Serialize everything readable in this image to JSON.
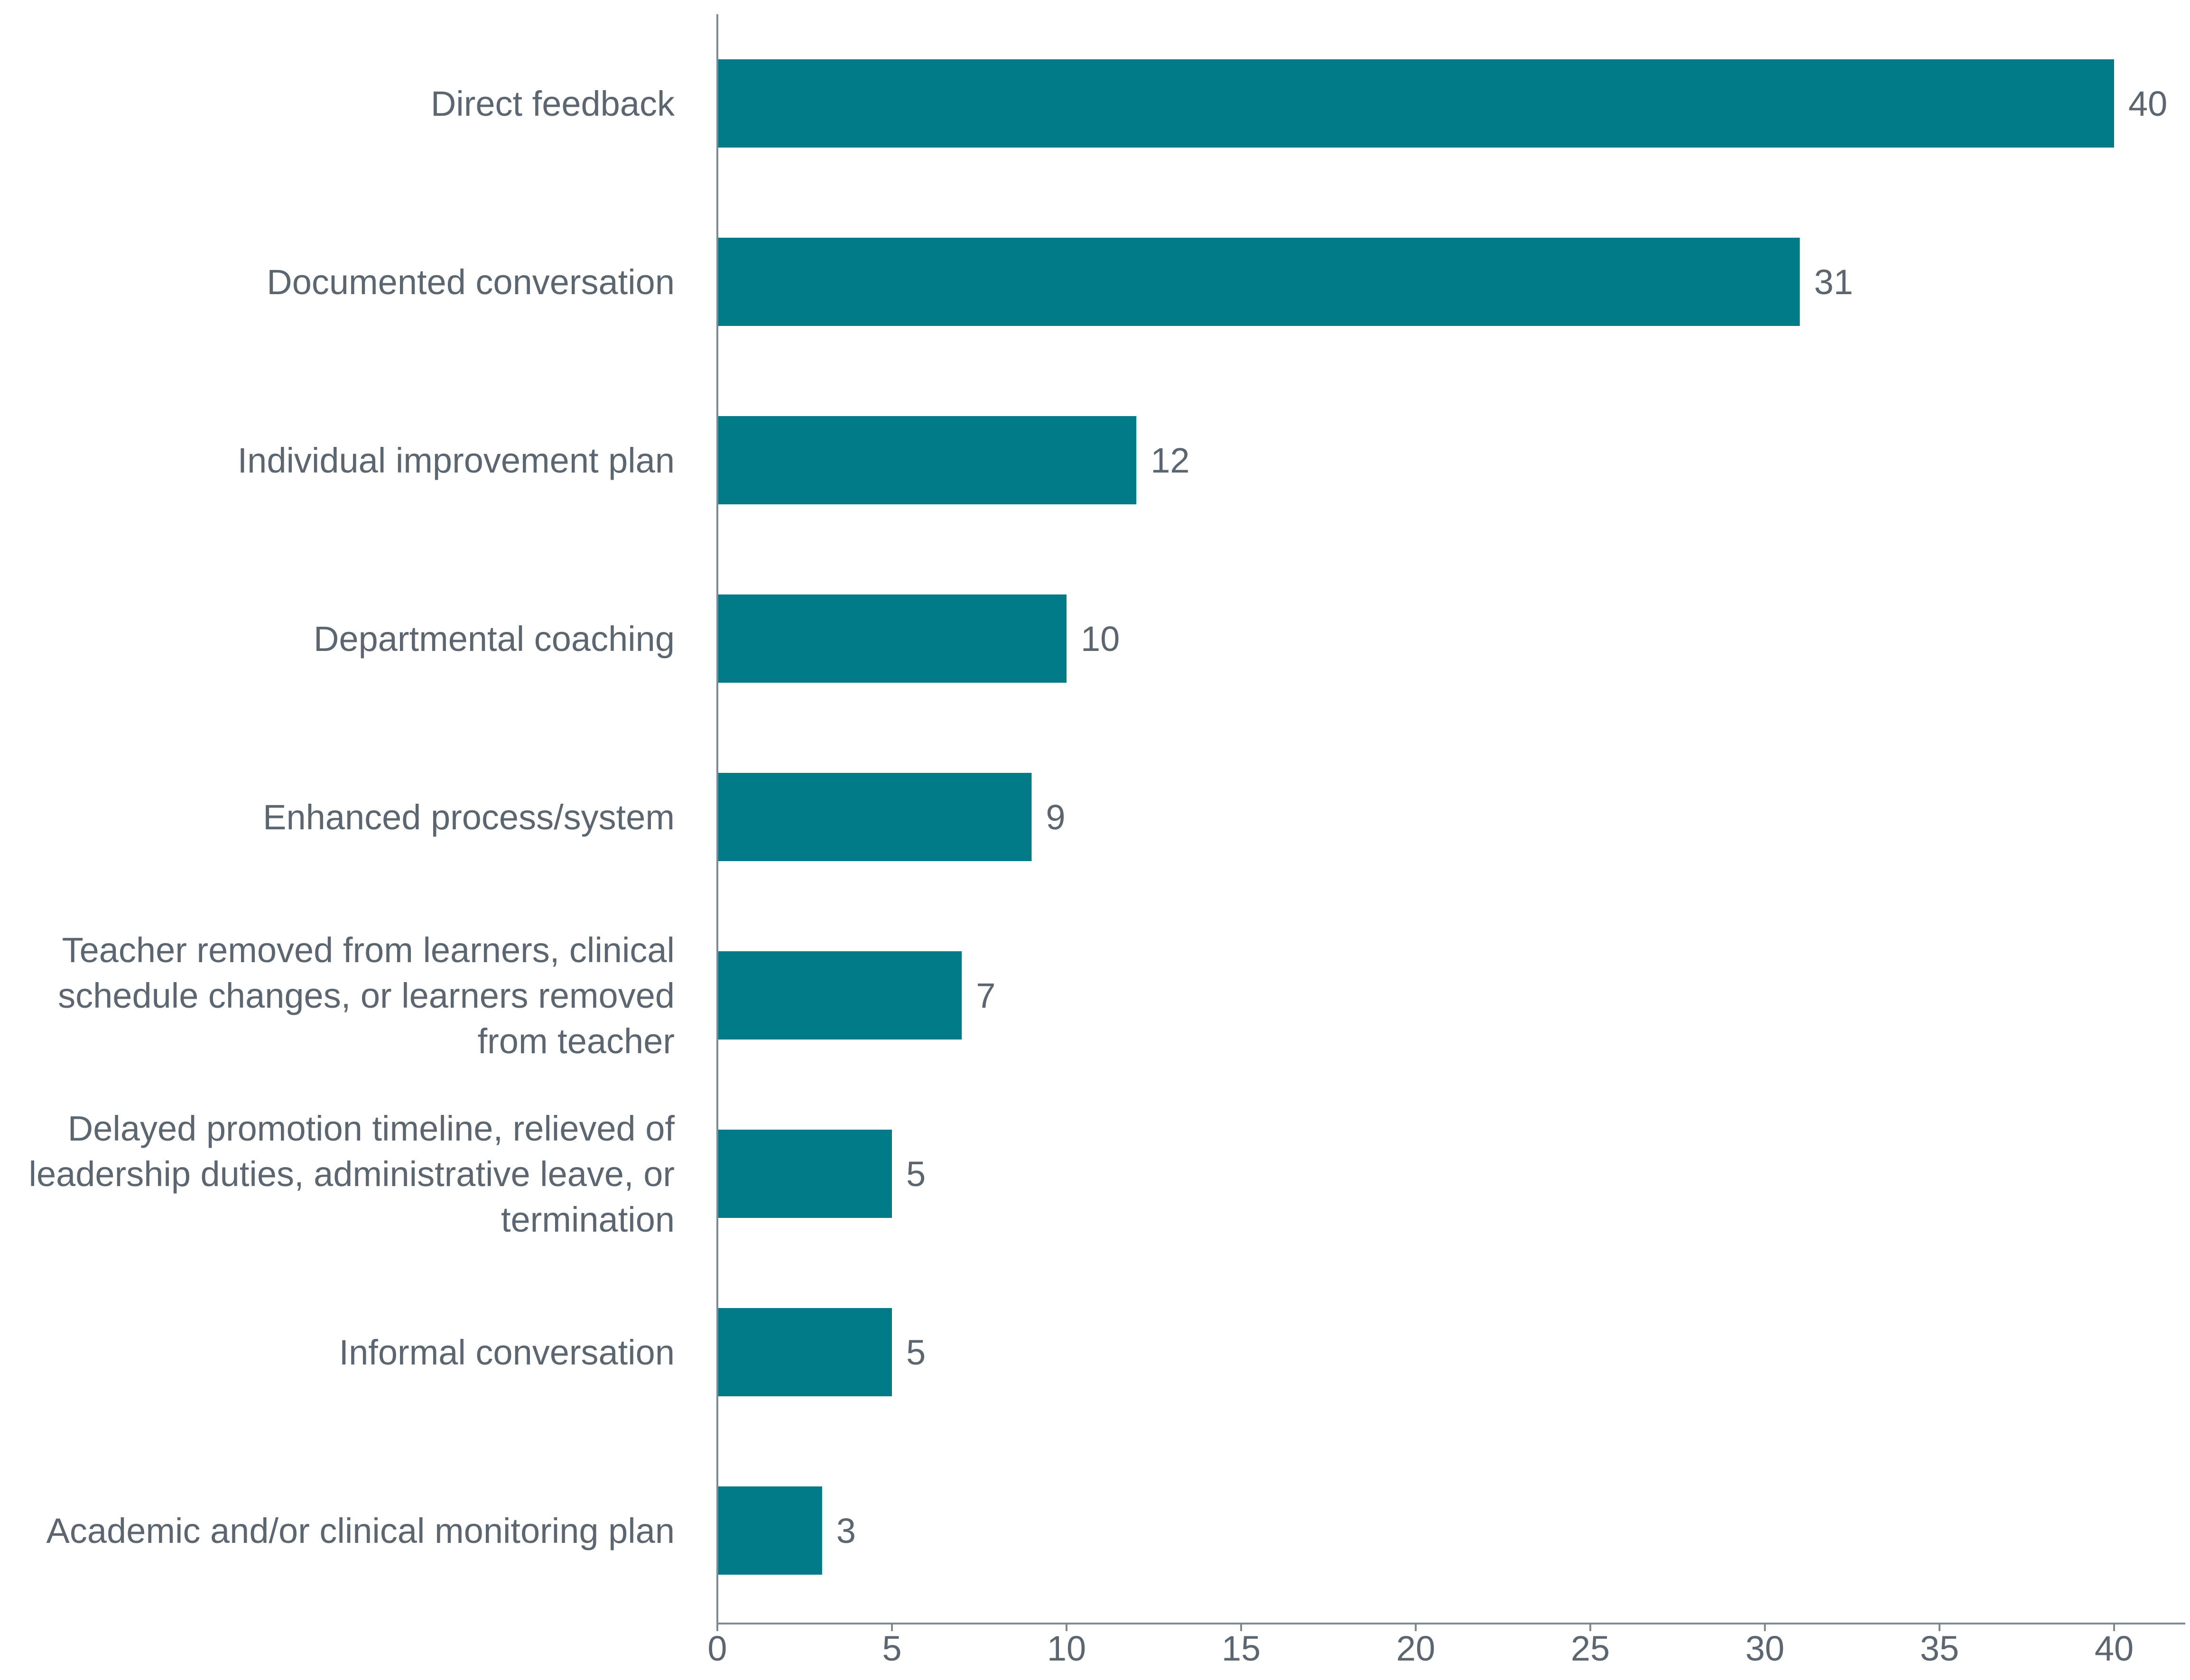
{
  "chart_data": {
    "type": "bar",
    "orientation": "horizontal",
    "categories": [
      "Direct feedback",
      "Documented conversation",
      "Individual improvement plan",
      "Departmental coaching",
      "Enhanced process/system",
      "Teacher removed from learners, clinical schedule changes, or learners removed from teacher",
      "Delayed promotion timeline, relieved of leadership duties, administrative leave, or termination",
      "Informal conversation",
      "Academic and/or clinical monitoring plan"
    ],
    "category_lines": [
      [
        "Direct feedback"
      ],
      [
        "Documented conversation"
      ],
      [
        "Individual improvement plan"
      ],
      [
        "Departmental coaching"
      ],
      [
        "Enhanced process/system"
      ],
      [
        "Teacher removed from learners, clinical",
        "schedule changes, or learners removed",
        "from teacher"
      ],
      [
        "Delayed promotion timeline, relieved of",
        "leadership duties, administrative leave, or",
        "termination"
      ],
      [
        "Informal conversation"
      ],
      [
        "Academic and/or clinical monitoring plan"
      ]
    ],
    "values": [
      40,
      31,
      12,
      10,
      9,
      7,
      5,
      5,
      3
    ],
    "xlim": [
      0,
      42
    ],
    "xticks": [
      0,
      5,
      10,
      15,
      20,
      25,
      30,
      35,
      40
    ],
    "title": "",
    "xlabel": "",
    "ylabel": "",
    "grid": false,
    "legend": "none",
    "data_labels": true
  },
  "colors": {
    "bar": "#007A87",
    "text": "#5B6670",
    "axis": "#7F8B94"
  }
}
